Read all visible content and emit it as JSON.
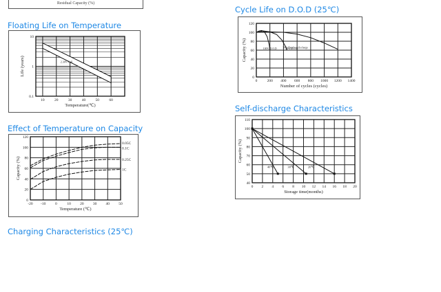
{
  "top_fragment": {
    "xlabel": "Residual Capacity (%)"
  },
  "sections": {
    "floating": "Floating Life on Temperature",
    "cycle": "Cycle Life on D.O.D (25℃)",
    "temp_capacity": "Effect of Temperature on Capacity",
    "self_discharge": "Self-discharge Characteristics",
    "charging": "Charging Characteristics (25℃)"
  },
  "chart_data": [
    {
      "id": "floating",
      "type": "area",
      "xlabel": "Temperature(℃)",
      "ylabel": "Life (years)",
      "xlim": [
        5,
        70
      ],
      "ylim": [
        0.1,
        10
      ],
      "yscale": "log",
      "xticks": [
        10,
        20,
        30,
        40,
        50,
        60
      ],
      "yticks": [
        0.1,
        1,
        10
      ],
      "yticklabels": [
        "0.1",
        "1",
        "10"
      ],
      "grid": true,
      "band": {
        "x": [
          10,
          60
        ],
        "upper": [
          6,
          0.45
        ],
        "lower": [
          4,
          0.28
        ]
      },
      "annotation": "2.30V/Cell"
    },
    {
      "id": "cycle",
      "type": "line",
      "xlabel": "Number of cycles (cycles)",
      "ylabel": "Capacity (%)",
      "xlim": [
        0,
        1400
      ],
      "ylim": [
        0,
        120
      ],
      "xticks": [
        0,
        200,
        400,
        600,
        800,
        1000,
        1200,
        1400
      ],
      "yticks": [
        0,
        20,
        40,
        60,
        80,
        100,
        120
      ],
      "grid": true,
      "series": [
        {
          "name": "100% D.O.D",
          "x": [
            0,
            40,
            80,
            120,
            160,
            190,
            200
          ],
          "y": [
            100,
            103,
            104,
            101,
            90,
            72,
            60
          ]
        },
        {
          "name": "50% D.O.D",
          "x": [
            0,
            100,
            200,
            300,
            380,
            430,
            450
          ],
          "y": [
            100,
            103,
            101,
            95,
            82,
            68,
            60
          ]
        },
        {
          "name": "30% Depth of discharge",
          "x": [
            0,
            200,
            400,
            600,
            800,
            1000,
            1200
          ],
          "y": [
            100,
            101,
            100,
            96,
            88,
            76,
            62
          ]
        }
      ]
    },
    {
      "id": "temp_capacity",
      "type": "line",
      "xlabel": "Temperature (℃)",
      "ylabel": "Capacity (%)",
      "xlim": [
        -20,
        50
      ],
      "ylim": [
        0,
        120
      ],
      "xticks": [
        -20,
        -10,
        0,
        10,
        20,
        30,
        40,
        50
      ],
      "xticklabels": [
        "-20",
        "-10",
        "0",
        "10",
        "20",
        "30",
        "40",
        "50"
      ],
      "yticks": [
        0,
        20,
        40,
        60,
        80,
        100,
        120
      ],
      "grid": true,
      "series": [
        {
          "name": "0.05C",
          "x": [
            -20,
            -10,
            0,
            10,
            20,
            30,
            40,
            50
          ],
          "y": [
            65,
            78,
            87,
            94,
            100,
            104,
            106,
            107
          ]
        },
        {
          "name": "0.1C",
          "x": [
            -20,
            -10,
            0,
            10,
            20,
            30,
            40,
            50
          ],
          "y": [
            61,
            75,
            83,
            90,
            96,
            99,
            100,
            100
          ]
        },
        {
          "name": "0.25C",
          "x": [
            -20,
            -10,
            0,
            10,
            20,
            30,
            40,
            50
          ],
          "y": [
            39,
            54,
            63,
            69,
            73,
            76,
            77,
            77
          ]
        },
        {
          "name": "1C",
          "x": [
            -20,
            -10,
            0,
            10,
            20,
            30,
            40,
            50
          ],
          "y": [
            20,
            35,
            43,
            49,
            53,
            56,
            57,
            58
          ]
        }
      ]
    },
    {
      "id": "self_discharge",
      "type": "line",
      "xlabel": "Storage time(months)",
      "ylabel": "Capacity (%)",
      "xlim": [
        0,
        20
      ],
      "ylim": [
        40,
        110
      ],
      "xticks": [
        0,
        2,
        4,
        6,
        8,
        10,
        12,
        14,
        16,
        18,
        20
      ],
      "yticks": [
        40,
        50,
        60,
        70,
        80,
        90,
        100,
        110
      ],
      "grid": true,
      "series": [
        {
          "name": "40℃",
          "x": [
            0,
            5
          ],
          "y": [
            100,
            50
          ]
        },
        {
          "name": "30℃",
          "x": [
            0,
            10.5
          ],
          "y": [
            100,
            50
          ]
        },
        {
          "name": "20℃",
          "x": [
            0,
            16
          ],
          "y": [
            100,
            50
          ]
        }
      ]
    }
  ]
}
